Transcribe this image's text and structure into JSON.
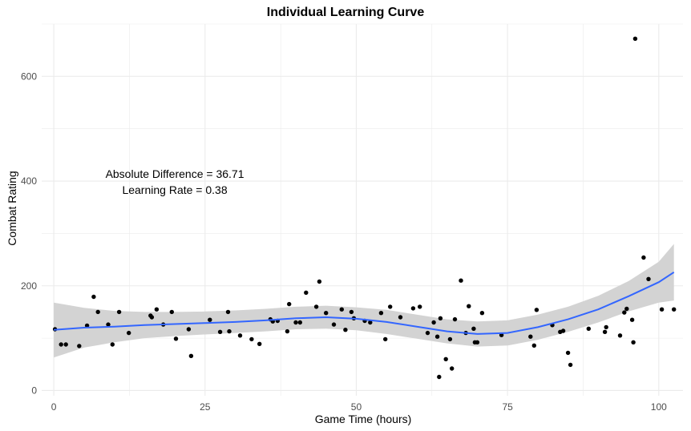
{
  "chart_data": {
    "type": "scatter",
    "title": "Individual Learning Curve",
    "xlabel": "Game Time (hours)",
    "ylabel": "Combat Rating",
    "xlim": [
      -2,
      104
    ],
    "ylim": [
      -10,
      700
    ],
    "x_ticks": [
      0,
      25,
      50,
      75,
      100
    ],
    "y_ticks": [
      0,
      200,
      400,
      600
    ],
    "x_tick_labels": [
      "0",
      "25",
      "50",
      "75",
      "100"
    ],
    "y_tick_labels": [
      "0",
      "200",
      "400",
      "600"
    ],
    "grid": true,
    "annotations": [
      "Absolute Difference = 36.71",
      "Learning Rate = 0.38"
    ],
    "annotation_position": {
      "x": 20,
      "y": 385
    },
    "colors": {
      "points": "#000000",
      "smooth": "#3366FF",
      "ribbon": "#D3D3D3",
      "grid": "#EBEBEB"
    },
    "points": [
      [
        0.2,
        117
      ],
      [
        1.2,
        88
      ],
      [
        2.0,
        88
      ],
      [
        4.2,
        85
      ],
      [
        5.5,
        124
      ],
      [
        6.6,
        179
      ],
      [
        7.3,
        150
      ],
      [
        9.0,
        126
      ],
      [
        9.7,
        88
      ],
      [
        10.8,
        150
      ],
      [
        12.4,
        110
      ],
      [
        16.0,
        143
      ],
      [
        16.2,
        140
      ],
      [
        17.0,
        155
      ],
      [
        18.1,
        126
      ],
      [
        19.5,
        150
      ],
      [
        20.2,
        99
      ],
      [
        22.3,
        117
      ],
      [
        22.7,
        66
      ],
      [
        25.8,
        135
      ],
      [
        27.5,
        112
      ],
      [
        28.8,
        150
      ],
      [
        29.0,
        113
      ],
      [
        30.8,
        105
      ],
      [
        32.7,
        98
      ],
      [
        34.0,
        89
      ],
      [
        35.8,
        136
      ],
      [
        36.2,
        132
      ],
      [
        37.0,
        133
      ],
      [
        38.6,
        113
      ],
      [
        38.9,
        165
      ],
      [
        40.0,
        130
      ],
      [
        40.7,
        130
      ],
      [
        41.7,
        187
      ],
      [
        43.4,
        160
      ],
      [
        43.9,
        208
      ],
      [
        45.0,
        148
      ],
      [
        46.3,
        126
      ],
      [
        47.6,
        155
      ],
      [
        48.2,
        116
      ],
      [
        49.2,
        150
      ],
      [
        49.6,
        138
      ],
      [
        51.4,
        133
      ],
      [
        52.3,
        130
      ],
      [
        54.1,
        148
      ],
      [
        54.8,
        98
      ],
      [
        55.6,
        160
      ],
      [
        57.3,
        140
      ],
      [
        59.4,
        157
      ],
      [
        60.5,
        160
      ],
      [
        61.8,
        110
      ],
      [
        62.8,
        130
      ],
      [
        63.4,
        103
      ],
      [
        63.7,
        26
      ],
      [
        63.9,
        138
      ],
      [
        64.8,
        60
      ],
      [
        65.5,
        98
      ],
      [
        65.8,
        42
      ],
      [
        66.3,
        136
      ],
      [
        67.3,
        210
      ],
      [
        68.1,
        110
      ],
      [
        68.6,
        161
      ],
      [
        69.4,
        118
      ],
      [
        69.6,
        92
      ],
      [
        70.0,
        92
      ],
      [
        70.8,
        148
      ],
      [
        74.0,
        106
      ],
      [
        78.8,
        103
      ],
      [
        79.4,
        86
      ],
      [
        79.8,
        154
      ],
      [
        82.4,
        125
      ],
      [
        83.7,
        112
      ],
      [
        84.2,
        114
      ],
      [
        85.0,
        72
      ],
      [
        85.4,
        49
      ],
      [
        88.4,
        118
      ],
      [
        91.1,
        112
      ],
      [
        91.3,
        121
      ],
      [
        93.6,
        105
      ],
      [
        94.3,
        149
      ],
      [
        94.7,
        156
      ],
      [
        95.6,
        135
      ],
      [
        95.8,
        92
      ],
      [
        96.1,
        672
      ],
      [
        97.5,
        254
      ],
      [
        98.3,
        213
      ],
      [
        100.5,
        155
      ],
      [
        102.5,
        155
      ]
    ],
    "smooth_fit": [
      [
        0,
        116,
        63,
        168
      ],
      [
        5,
        120,
        82,
        158
      ],
      [
        10,
        122,
        92,
        152
      ],
      [
        15,
        125,
        100,
        150
      ],
      [
        20,
        127,
        104,
        150
      ],
      [
        25,
        129,
        107,
        151
      ],
      [
        30,
        131,
        110,
        153
      ],
      [
        35,
        134,
        113,
        156
      ],
      [
        40,
        138,
        117,
        160
      ],
      [
        45,
        140,
        118,
        162
      ],
      [
        50,
        137,
        115,
        159
      ],
      [
        55,
        131,
        108,
        154
      ],
      [
        60,
        122,
        99,
        145
      ],
      [
        65,
        113,
        90,
        136
      ],
      [
        70,
        108,
        84,
        132
      ],
      [
        75,
        110,
        86,
        134
      ],
      [
        80,
        121,
        97,
        145
      ],
      [
        85,
        136,
        112,
        160
      ],
      [
        90,
        155,
        130,
        181
      ],
      [
        95,
        180,
        151,
        209
      ],
      [
        100,
        207,
        168,
        246
      ],
      [
        102.5,
        226,
        172,
        280
      ]
    ]
  }
}
